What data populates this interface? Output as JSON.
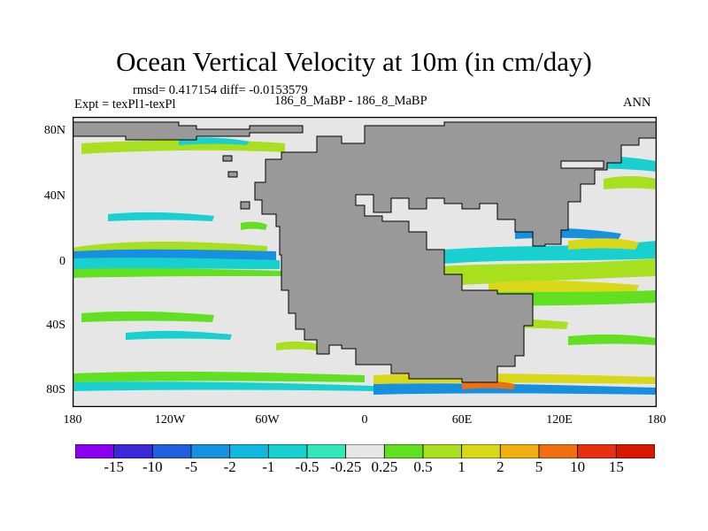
{
  "title": "Ocean Vertical Velocity at 10m (in cm/day)",
  "stats": "rmsd= 0.417154 diff= -0.0153579",
  "expt": "Expt = texPl1-texPl",
  "case": "186_8_MaBP - 186_8_MaBP",
  "season": "ANN",
  "x_ticks": [
    "180",
    "120W",
    "60W",
    "0",
    "60E",
    "120E",
    "180"
  ],
  "y_ticks": [
    "80N",
    "40N",
    "0",
    "40S",
    "80S"
  ],
  "colorbar": {
    "labels": [
      "-15",
      "-10",
      "-5",
      "-2",
      "-1",
      "-0.5",
      "-0.25",
      "0.25",
      "0.5",
      "1",
      "2",
      "5",
      "10",
      "15"
    ],
    "colors": [
      "#8a00f0",
      "#3c28d8",
      "#2060e0",
      "#1890e0",
      "#10b8e0",
      "#18d0d0",
      "#30e8b8",
      "#e6e6e6",
      "#60e020",
      "#a8e020",
      "#d8d818",
      "#f0b010",
      "#f07010",
      "#e83010",
      "#d81800"
    ]
  },
  "map": {
    "land_color": "#999999",
    "ocean_color": "#e6e6e6",
    "lon_range": [
      -180,
      180
    ],
    "lat_range": [
      -90,
      90
    ]
  }
}
